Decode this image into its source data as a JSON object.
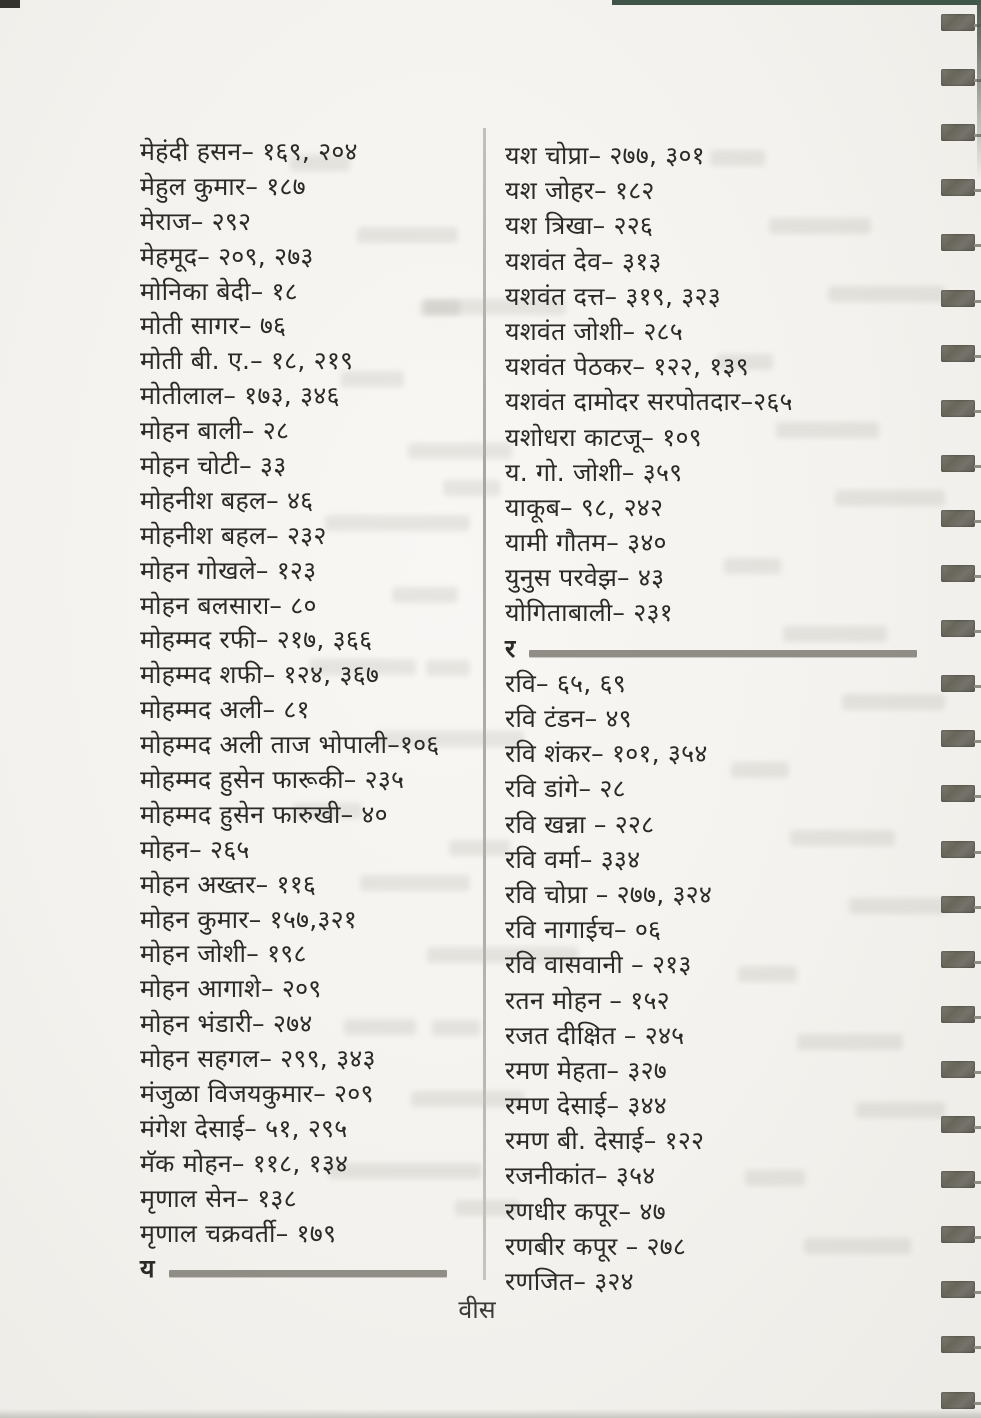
{
  "index_page": {
    "footer_page_label": "वीस",
    "left_column": {
      "rows": [
        {
          "type": "entry",
          "text": "मेहंदी हसन– १६९, २०४"
        },
        {
          "type": "entry",
          "text": "मेहुल कुमार– १८७"
        },
        {
          "type": "entry",
          "text": "मेराज– २९२"
        },
        {
          "type": "entry",
          "text": "मेहमूद– २०९, २७३"
        },
        {
          "type": "entry",
          "text": "मोनिका बेदी– १८"
        },
        {
          "type": "entry",
          "text": "मोती सागर– ७६"
        },
        {
          "type": "entry",
          "text": "मोती बी. ए.– १८, २१९"
        },
        {
          "type": "entry",
          "text": "मोतीलाल– १७३, ३४६"
        },
        {
          "type": "entry",
          "text": "मोहन बाली– २८"
        },
        {
          "type": "entry",
          "text": "मोहन चोटी– ३३"
        },
        {
          "type": "entry",
          "text": "मोहनीश बहल– ४६"
        },
        {
          "type": "entry",
          "text": "मोहनीश बहल– २३२"
        },
        {
          "type": "entry",
          "text": "मोहन गोखले– १२३"
        },
        {
          "type": "entry",
          "text": "मोहन बलसारा– ८०"
        },
        {
          "type": "entry",
          "text": "मोहम्मद रफी– २१७, ३६६"
        },
        {
          "type": "entry",
          "text": "मोहम्मद शफी– १२४, ३६७"
        },
        {
          "type": "entry",
          "text": "मोहम्मद अली– ८१"
        },
        {
          "type": "entry",
          "text": "मोहम्मद अली ताज भोपाली–१०६"
        },
        {
          "type": "entry",
          "text": "मोहम्मद हुसेन फारूकी– २३५"
        },
        {
          "type": "entry",
          "text": "मोहम्मद हुसेन फारुखी– ४०"
        },
        {
          "type": "entry",
          "text": "मोहन– २६५"
        },
        {
          "type": "entry",
          "text": "मोहन अख्तर– ११६"
        },
        {
          "type": "entry",
          "text": "मोहन कुमार– १५७,३२१"
        },
        {
          "type": "entry",
          "text": "मोहन जोशी– १९८"
        },
        {
          "type": "entry",
          "text": "मोहन आगाशे– २०९"
        },
        {
          "type": "entry",
          "text": "मोहन भंडारी– २७४"
        },
        {
          "type": "entry",
          "text": "मोहन सहगल– २९९, ३४३"
        },
        {
          "type": "entry",
          "text": "मंजुळा विजयकुमार– २०९"
        },
        {
          "type": "entry",
          "text": "मंगेश देसाई– ५१, २९५"
        },
        {
          "type": "entry",
          "text": "मॅक मोहन– ११८, १३४"
        },
        {
          "type": "entry",
          "text": "मृणाल सेन– १३८"
        },
        {
          "type": "entry",
          "text": "मृणाल चक्रवर्ती– १७९"
        },
        {
          "type": "section",
          "text": "य"
        }
      ]
    },
    "right_column": {
      "rows": [
        {
          "type": "entry",
          "text": "यश चोप्रा– २७७, ३०१"
        },
        {
          "type": "entry",
          "text": "यश जोहर– १८२"
        },
        {
          "type": "entry",
          "text": "यश त्रिखा– २२६"
        },
        {
          "type": "entry",
          "text": "यशवंत देव– ३१३"
        },
        {
          "type": "entry",
          "text": "यशवंत दत्त– ३१९, ३२३"
        },
        {
          "type": "entry",
          "text": "यशवंत जोशी– २८५"
        },
        {
          "type": "entry",
          "text": "यशवंत पेठकर– १२२, १३९"
        },
        {
          "type": "entry",
          "text": "यशवंत दामोदर सरपोतदार–२६५"
        },
        {
          "type": "entry",
          "text": "यशोधरा काटजू– १०९"
        },
        {
          "type": "entry",
          "text": "य. गो. जोशी– ३५९"
        },
        {
          "type": "entry",
          "text": "याकूब– ९८, २४२"
        },
        {
          "type": "entry",
          "text": "यामी गौतम– ३४०"
        },
        {
          "type": "entry",
          "text": "युनुस परवेझ– ४३"
        },
        {
          "type": "entry",
          "text": "योगिताबाली– २३१"
        },
        {
          "type": "section",
          "text": "र"
        },
        {
          "type": "entry",
          "text": "रवि– ६५, ६९"
        },
        {
          "type": "entry",
          "text": "रवि टंडन– ४९"
        },
        {
          "type": "entry",
          "text": "रवि शंकर– १०१, ३५४"
        },
        {
          "type": "entry",
          "text": "रवि डांगे– २८"
        },
        {
          "type": "entry",
          "text": "रवि खन्ना – २२८"
        },
        {
          "type": "entry",
          "text": "रवि वर्मा– ३३४"
        },
        {
          "type": "entry",
          "text": "रवि चोप्रा – २७७, ३२४"
        },
        {
          "type": "entry",
          "text": "रवि नागाईच– ०६"
        },
        {
          "type": "entry",
          "text": "रवि वासवानी – २१३"
        },
        {
          "type": "entry",
          "text": "रतन मोहन – १५२"
        },
        {
          "type": "entry",
          "text": "रजत दीक्षित – २४५"
        },
        {
          "type": "entry",
          "text": "रमण मेहता– ३२७"
        },
        {
          "type": "entry",
          "text": "रमण देसाई– ३४४"
        },
        {
          "type": "entry",
          "text": "रमण बी. देसाई– १२२"
        },
        {
          "type": "entry",
          "text": "रजनीकांत– ३५४"
        },
        {
          "type": "entry",
          "text": "रणधीर कपूर– ४७"
        },
        {
          "type": "entry",
          "text": "रणबीर कपूर – २७८"
        },
        {
          "type": "entry",
          "text": "रणजित– ३२४"
        }
      ]
    }
  },
  "colors": {
    "paper": "#f4f2ee",
    "ink": "#2b2a27",
    "divider": "#a8a6a0",
    "section_rule": "#8f8d85",
    "binding_coil": "#6b695f",
    "photo_edge_green": "#3f5547"
  }
}
